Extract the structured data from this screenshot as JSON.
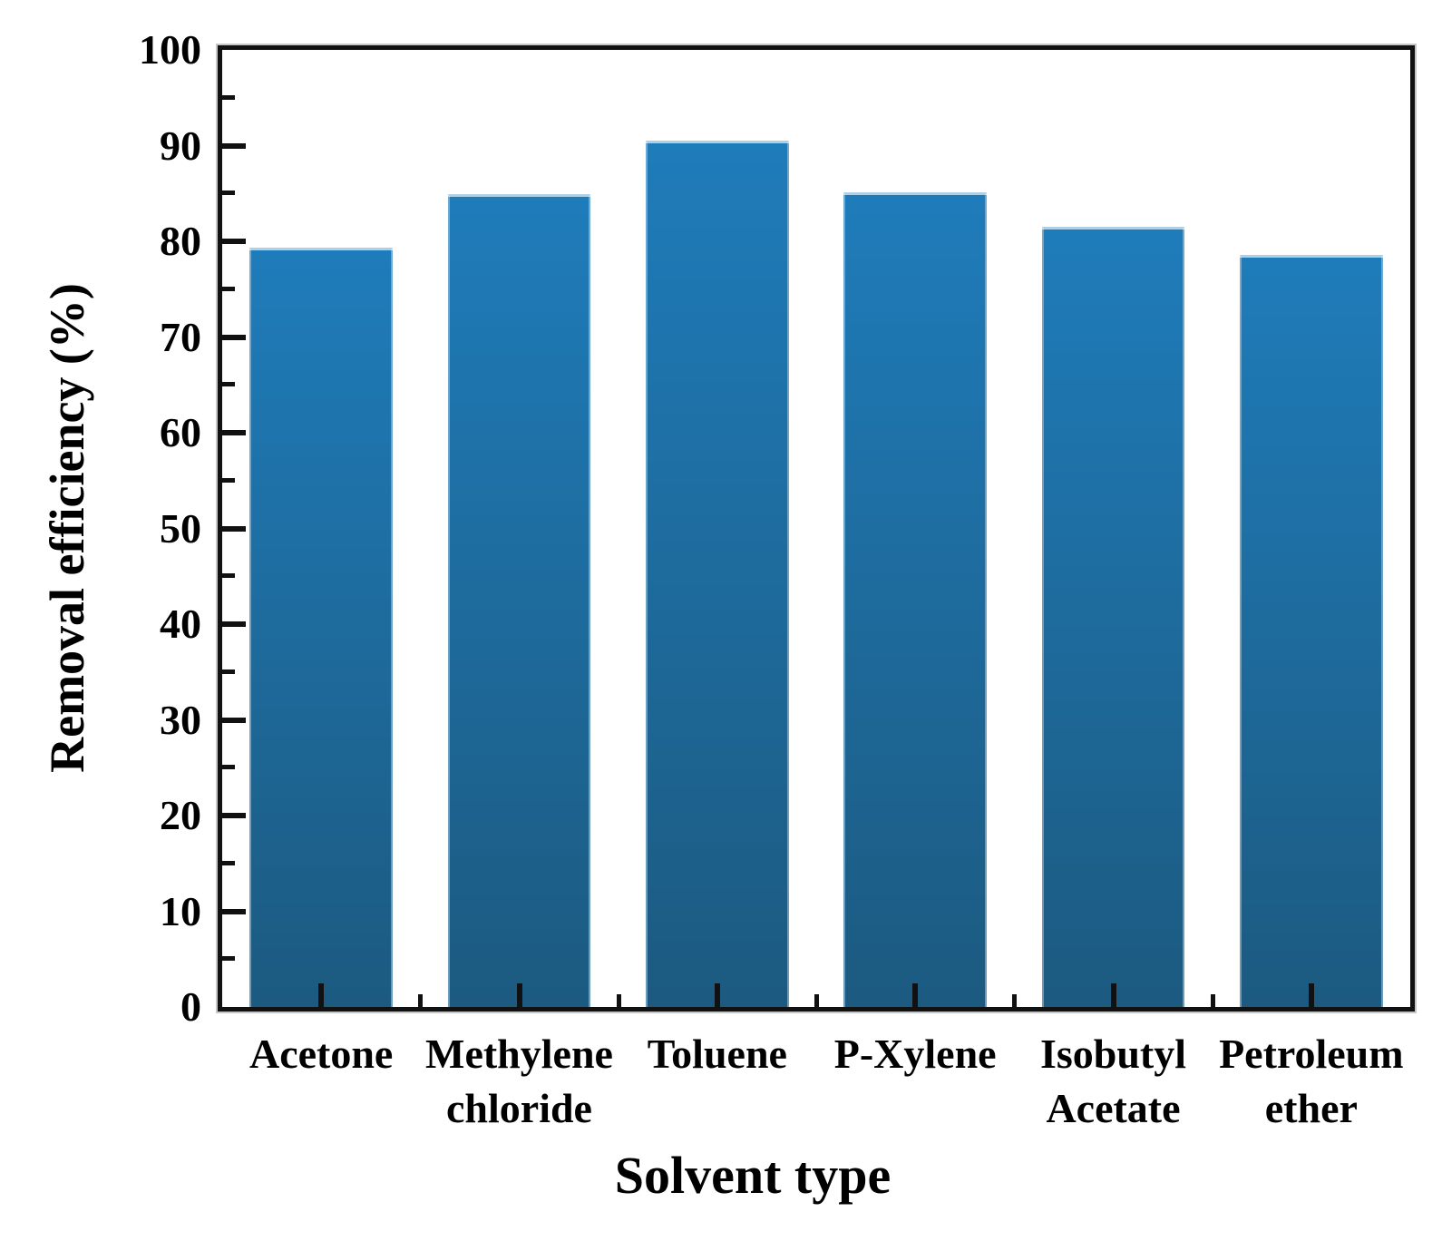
{
  "chart_data": {
    "type": "bar",
    "title": "",
    "categories": [
      "Acetone",
      "Methylene chloride",
      "Toluene",
      "P-Xylene",
      "Isobutyl Acetate",
      "Petroleum ether"
    ],
    "values": [
      79.3,
      84.9,
      90.5,
      85.1,
      81.5,
      78.6
    ],
    "xlabel": "Solvent type",
    "ylabel": "Removal efficiency (%)",
    "ylim": [
      0,
      100
    ],
    "y_major_tick_step": 10,
    "y_minor_tick_step": 5,
    "y_tick_labels": [
      "0",
      "10",
      "20",
      "30",
      "40",
      "50",
      "60",
      "70",
      "80",
      "90",
      "100"
    ],
    "grid": false,
    "legend": false,
    "colors": {
      "bar_top": "#1f7cba",
      "bar_bottom": "#1c5a80",
      "bar_edge": "#aed0e7",
      "axis": "#111111",
      "text": "#000000",
      "background": "#ffffff"
    }
  }
}
